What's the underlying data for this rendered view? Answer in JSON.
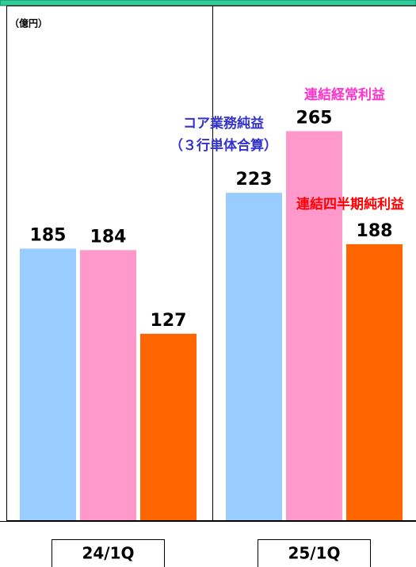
{
  "chart_data": {
    "type": "bar",
    "unit_label": "（億円）",
    "categories": [
      "24/1Q",
      "25/1Q"
    ],
    "series": [
      {
        "name": "コア業務純益\n（３行単体合算）",
        "color": "#99ccff",
        "label_color": "#3333cc",
        "values": [
          185,
          223
        ]
      },
      {
        "name": "連結経常利益",
        "color": "#ff99cc",
        "label_color": "#ff33cc",
        "values": [
          184,
          265
        ]
      },
      {
        "name": "連結四半期純利益",
        "color": "#ff6600",
        "label_color": "#ff0000",
        "values": [
          127,
          188
        ]
      }
    ],
    "ylim": [
      0,
      350
    ]
  }
}
